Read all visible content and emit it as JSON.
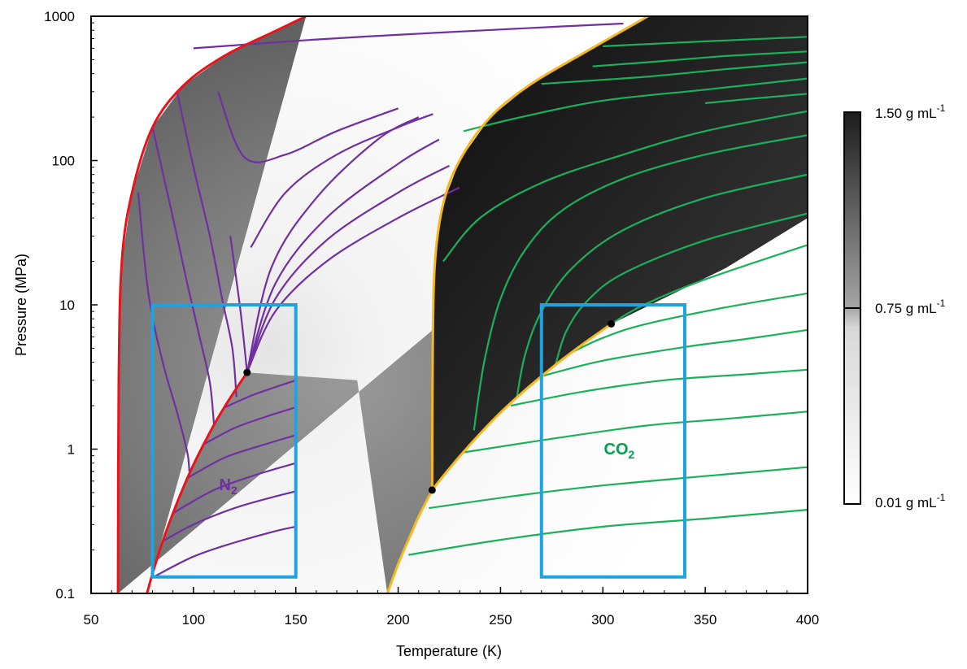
{
  "chart_data": {
    "type": "line",
    "xlabel": "Temperature (K)",
    "ylabel": "Pressure (MPa)",
    "xlim": [
      50,
      400
    ],
    "ylim": [
      0.1,
      1000
    ],
    "y_scale": "log",
    "x_ticks": [
      {
        "value": 50,
        "label": "50"
      },
      {
        "value": 100,
        "label": "100"
      },
      {
        "value": 150,
        "label": "150"
      },
      {
        "value": 200,
        "label": "200"
      },
      {
        "value": 250,
        "label": "250"
      },
      {
        "value": 300,
        "label": "300"
      },
      {
        "value": 350,
        "label": "350"
      },
      {
        "value": 400,
        "label": "400"
      }
    ],
    "y_ticks": [
      {
        "value": 0.1,
        "label": "0.1"
      },
      {
        "value": 1,
        "label": "1"
      },
      {
        "value": 10,
        "label": "10"
      },
      {
        "value": 100,
        "label": "100"
      },
      {
        "value": 1000,
        "label": "1000"
      }
    ],
    "colorbar": {
      "labels": [
        {
          "base": "1.50 g mL",
          "exp": "-1",
          "position": "top"
        },
        {
          "base": "0.75 g mL",
          "exp": "-1",
          "position": "middle"
        },
        {
          "base": "0.01 g mL",
          "exp": "-1",
          "position": "bottom"
        }
      ]
    },
    "annotations": [
      {
        "base": "N",
        "sub": "2",
        "x": 117,
        "y": 0.52,
        "color": "#7030a0"
      },
      {
        "base": "CO",
        "sub": "2",
        "x": 308,
        "y": 0.92,
        "color": "#00a050"
      }
    ],
    "colors": {
      "n2_phase": "#e8141c",
      "co2_phase": "#f5b91e",
      "n2_isochore": "#7030a0",
      "co2_isochore": "#1bb05a",
      "box": "#1ea3e0",
      "critical_point": "#000000"
    },
    "n2": {
      "melting_curve": [
        [
          63.15,
          0.1
        ],
        [
          63.5,
          3
        ],
        [
          65,
          20
        ],
        [
          70,
          60
        ],
        [
          80,
          170
        ],
        [
          95,
          330
        ],
        [
          115,
          530
        ],
        [
          140,
          790
        ],
        [
          155,
          1000
        ]
      ],
      "vapor_curve": [
        [
          77.3,
          0.1
        ],
        [
          80,
          0.137
        ],
        [
          85,
          0.23
        ],
        [
          90,
          0.36
        ],
        [
          95,
          0.54
        ],
        [
          100,
          0.78
        ],
        [
          105,
          1.08
        ],
        [
          110,
          1.47
        ],
        [
          115,
          1.94
        ],
        [
          120,
          2.51
        ],
        [
          126.2,
          3.4
        ]
      ],
      "critical_point": [
        126.2,
        3.4
      ],
      "box": {
        "x": [
          80,
          150
        ],
        "y": [
          0.13,
          10
        ]
      }
    },
    "co2": {
      "melting_curve": [
        [
          216.6,
          0.52
        ],
        [
          216.9,
          5
        ],
        [
          218,
          20
        ],
        [
          222,
          50
        ],
        [
          230,
          100
        ],
        [
          245,
          200
        ],
        [
          265,
          340
        ],
        [
          290,
          550
        ],
        [
          310,
          800
        ],
        [
          322,
          1000
        ]
      ],
      "sublimation_curve": [
        [
          194.7,
          0.1
        ],
        [
          200,
          0.16
        ],
        [
          205,
          0.235
        ],
        [
          210,
          0.34
        ],
        [
          216.6,
          0.52
        ]
      ],
      "vapor_curve": [
        [
          216.6,
          0.52
        ],
        [
          220,
          0.6
        ],
        [
          230,
          0.89
        ],
        [
          240,
          1.28
        ],
        [
          250,
          1.79
        ],
        [
          260,
          2.42
        ],
        [
          270,
          3.2
        ],
        [
          280,
          4.16
        ],
        [
          290,
          5.32
        ],
        [
          300,
          6.71
        ],
        [
          304.1,
          7.38
        ]
      ],
      "critical_point": [
        304.1,
        7.38
      ],
      "box": {
        "x": [
          270,
          340
        ],
        "y": [
          0.13,
          10
        ]
      }
    },
    "series": [
      {
        "group": "n2",
        "points": [
          [
            80.5,
            0.13
          ],
          [
            100,
            0.18
          ],
          [
            120,
            0.225
          ],
          [
            140,
            0.27
          ],
          [
            150,
            0.29
          ]
        ]
      },
      {
        "group": "n2",
        "points": [
          [
            85,
            0.23
          ],
          [
            100,
            0.3
          ],
          [
            120,
            0.39
          ],
          [
            140,
            0.47
          ],
          [
            150,
            0.51
          ]
        ]
      },
      {
        "group": "n2",
        "points": [
          [
            90,
            0.36
          ],
          [
            110,
            0.52
          ],
          [
            130,
            0.66
          ],
          [
            150,
            0.8
          ]
        ]
      },
      {
        "group": "n2",
        "points": [
          [
            97,
            0.63
          ],
          [
            115,
            0.87
          ],
          [
            135,
            1.08
          ],
          [
            150,
            1.25
          ]
        ]
      },
      {
        "group": "n2",
        "points": [
          [
            105,
            1.08
          ],
          [
            120,
            1.4
          ],
          [
            135,
            1.67
          ],
          [
            150,
            1.95
          ]
        ]
      },
      {
        "group": "n2",
        "points": [
          [
            115,
            1.94
          ],
          [
            130,
            2.4
          ],
          [
            150,
            3
          ]
        ]
      },
      {
        "group": "n2",
        "points": [
          [
            73,
            60
          ],
          [
            78,
            12
          ],
          [
            85,
            4
          ],
          [
            92,
            1.8
          ],
          [
            97,
            0.95
          ],
          [
            98,
            0.7
          ]
        ]
      },
      {
        "group": "n2",
        "points": [
          [
            80,
            170
          ],
          [
            90,
            40
          ],
          [
            97,
            14
          ],
          [
            103,
            6
          ],
          [
            108,
            2.9
          ],
          [
            110,
            1.5
          ]
        ]
      },
      {
        "group": "n2",
        "points": [
          [
            92,
            300
          ],
          [
            100,
            90
          ],
          [
            108,
            30
          ],
          [
            114,
            11
          ],
          [
            119,
            5
          ],
          [
            121,
            2.3
          ]
        ]
      },
      {
        "group": "n2",
        "points": [
          [
            112,
            300
          ],
          [
            125,
            105
          ],
          [
            145,
            110
          ],
          [
            170,
            160
          ],
          [
            200,
            230
          ]
        ]
      },
      {
        "group": "n2",
        "points": [
          [
            118,
            30
          ],
          [
            123,
            9
          ],
          [
            126.2,
            3.4
          ]
        ]
      },
      {
        "group": "n2",
        "points": [
          [
            126.2,
            3.4
          ],
          [
            140,
            9
          ],
          [
            165,
            20
          ],
          [
            200,
            40
          ],
          [
            230,
            65
          ]
        ]
      },
      {
        "group": "n2",
        "points": [
          [
            126.2,
            3.4
          ],
          [
            140,
            11
          ],
          [
            165,
            28
          ],
          [
            200,
            60
          ],
          [
            225,
            92
          ]
        ]
      },
      {
        "group": "n2",
        "points": [
          [
            126.2,
            3.4
          ],
          [
            140,
            14
          ],
          [
            165,
            40
          ],
          [
            200,
            95
          ],
          [
            220,
            140
          ]
        ]
      },
      {
        "group": "n2",
        "points": [
          [
            126.2,
            3.4
          ],
          [
            138,
            18
          ],
          [
            160,
            55
          ],
          [
            190,
            140
          ],
          [
            210,
            200
          ]
        ]
      },
      {
        "group": "n2",
        "points": [
          [
            100,
            600
          ],
          [
            160,
            690
          ],
          [
            220,
            770
          ],
          [
            280,
            850
          ],
          [
            310,
            890
          ]
        ]
      },
      {
        "group": "n2",
        "points": [
          [
            128,
            25
          ],
          [
            145,
            60
          ],
          [
            170,
            110
          ],
          [
            200,
            170
          ],
          [
            217,
            210
          ]
        ]
      },
      {
        "group": "co2",
        "points": [
          [
            205,
            0.185
          ],
          [
            250,
            0.235
          ],
          [
            300,
            0.29
          ],
          [
            350,
            0.33
          ],
          [
            400,
            0.38
          ]
        ]
      },
      {
        "group": "co2",
        "points": [
          [
            215,
            0.39
          ],
          [
            260,
            0.48
          ],
          [
            300,
            0.56
          ],
          [
            350,
            0.65
          ],
          [
            400,
            0.75
          ]
        ]
      },
      {
        "group": "co2",
        "points": [
          [
            232,
            0.95
          ],
          [
            270,
            1.15
          ],
          [
            320,
            1.45
          ],
          [
            360,
            1.62
          ],
          [
            400,
            1.82
          ]
        ]
      },
      {
        "group": "co2",
        "points": [
          [
            255,
            2.0
          ],
          [
            290,
            2.5
          ],
          [
            330,
            3.0
          ],
          [
            370,
            3.3
          ],
          [
            400,
            3.55
          ]
        ]
      },
      {
        "group": "co2",
        "points": [
          [
            270,
            3.2
          ],
          [
            300,
            4.1
          ],
          [
            340,
            5.1
          ],
          [
            370,
            5.8
          ],
          [
            400,
            6.7
          ]
        ]
      },
      {
        "group": "co2",
        "points": [
          [
            285,
            4.7
          ],
          [
            300,
            5.9
          ],
          [
            320,
            7.3
          ],
          [
            360,
            9.6
          ],
          [
            400,
            12
          ]
        ]
      },
      {
        "group": "co2",
        "points": [
          [
            237,
            1.35
          ],
          [
            242,
            4
          ],
          [
            250,
            11
          ],
          [
            262,
            24
          ],
          [
            280,
            45
          ],
          [
            310,
            75
          ],
          [
            350,
            110
          ],
          [
            400,
            150
          ]
        ]
      },
      {
        "group": "co2",
        "points": [
          [
            258,
            2.3
          ],
          [
            262,
            4.5
          ],
          [
            270,
            9
          ],
          [
            285,
            18
          ],
          [
            310,
            33
          ],
          [
            350,
            55
          ],
          [
            400,
            80
          ]
        ]
      },
      {
        "group": "co2",
        "points": [
          [
            277,
            3.9
          ],
          [
            282,
            6.5
          ],
          [
            292,
            10.5
          ],
          [
            310,
            16.5
          ],
          [
            350,
            28
          ],
          [
            400,
            43
          ]
        ]
      },
      {
        "group": "co2",
        "points": [
          [
            304.1,
            7.38
          ],
          [
            320,
            10
          ],
          [
            350,
            15
          ],
          [
            400,
            26
          ]
        ]
      },
      {
        "group": "co2",
        "points": [
          [
            222,
            20
          ],
          [
            240,
            40
          ],
          [
            270,
            70
          ],
          [
            310,
            110
          ],
          [
            350,
            160
          ],
          [
            400,
            220
          ]
        ]
      },
      {
        "group": "co2",
        "points": [
          [
            232,
            160
          ],
          [
            260,
            200
          ],
          [
            300,
            260
          ],
          [
            350,
            310
          ],
          [
            400,
            370
          ]
        ]
      },
      {
        "group": "co2",
        "points": [
          [
            295,
            450
          ],
          [
            330,
            490
          ],
          [
            360,
            530
          ],
          [
            400,
            570
          ]
        ]
      },
      {
        "group": "co2",
        "points": [
          [
            270,
            340
          ],
          [
            320,
            380
          ],
          [
            360,
            430
          ],
          [
            400,
            480
          ]
        ]
      },
      {
        "group": "co2",
        "points": [
          [
            300,
            620
          ],
          [
            350,
            670
          ],
          [
            400,
            720
          ]
        ]
      },
      {
        "group": "co2",
        "points": [
          [
            350,
            250
          ],
          [
            375,
            270
          ],
          [
            400,
            290
          ]
        ]
      }
    ]
  }
}
